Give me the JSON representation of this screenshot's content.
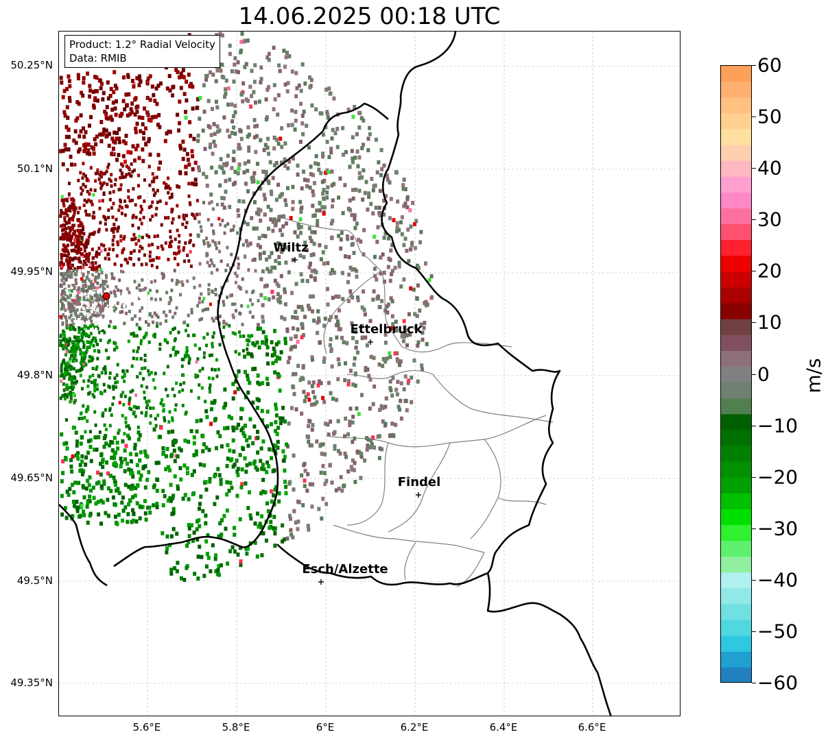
{
  "title": "14.06.2025 00:18 UTC",
  "info_box": {
    "product": "Product: 1.2° Radial Velocity",
    "data": "Data: RMIB"
  },
  "map": {
    "lat_ticks": [
      "50.25°N",
      "50.1°N",
      "49.95°N",
      "49.8°N",
      "49.65°N",
      "49.5°N",
      "49.35°N"
    ],
    "lon_ticks": [
      "5.6°E",
      "5.8°E",
      "6°E",
      "6.2°E",
      "6.4°E",
      "6.6°E"
    ],
    "cities": [
      {
        "name": "Wiltz"
      },
      {
        "name": "Ettelbruck"
      },
      {
        "name": "Findel"
      },
      {
        "name": "Esch/Alzette"
      }
    ],
    "radar_marker_color": "#e00000"
  },
  "colorbar": {
    "unit": "m/s",
    "ticks": [
      "60",
      "50",
      "40",
      "30",
      "20",
      "10",
      "0",
      "−10",
      "−20",
      "−30",
      "−40",
      "−50",
      "−60"
    ],
    "colors_top_to_bottom": [
      "#ffa05a",
      "#ffb070",
      "#ffc080",
      "#ffd090",
      "#ffe0a0",
      "#ffd0b0",
      "#ffb8c0",
      "#ffa0d0",
      "#ff88c8",
      "#ff70a0",
      "#ff5070",
      "#ff2030",
      "#ee0000",
      "#cc0000",
      "#aa0000",
      "#880000",
      "#704040",
      "#805060",
      "#907078",
      "#808080",
      "#708070",
      "#508050",
      "#006000",
      "#007000",
      "#008000",
      "#009000",
      "#00a000",
      "#00c000",
      "#00e000",
      "#30f030",
      "#60f070",
      "#90f0a0",
      "#b0f0f0",
      "#90e8e8",
      "#70e0e0",
      "#50d8e0",
      "#30c8e0",
      "#20a0d0",
      "#2080c0"
    ]
  }
}
